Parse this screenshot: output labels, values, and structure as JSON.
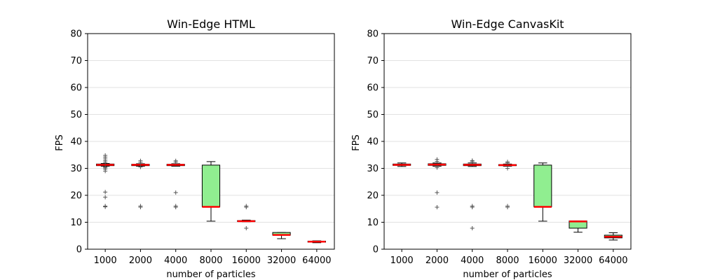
{
  "colors": {
    "box_fill": "#90ee90",
    "median": "#ff0000",
    "grid": "#d9d9d9",
    "outlier": "#555555"
  },
  "chart_data": [
    {
      "type": "box",
      "title": "Win-Edge HTML",
      "xlabel": "number of particles",
      "ylabel": "FPS",
      "ylim": [
        0,
        80
      ],
      "yticks": [
        0,
        10,
        20,
        30,
        40,
        50,
        60,
        70,
        80
      ],
      "grid": "horizontal",
      "categories": [
        "1000",
        "2000",
        "4000",
        "8000",
        "16000",
        "32000",
        "64000"
      ],
      "boxes": [
        {
          "q1": 31.0,
          "median": 31.3,
          "q3": 31.6,
          "whisker_low": 30.8,
          "whisker_high": 31.8,
          "outliers": [
            15.7,
            16.0,
            19.3,
            21.2,
            29.0,
            29.7,
            30.2,
            30.5,
            32.2,
            32.8,
            33.5,
            34.2,
            34.8
          ]
        },
        {
          "q1": 31.0,
          "median": 31.3,
          "q3": 31.5,
          "whisker_low": 30.8,
          "whisker_high": 31.7,
          "outliers": [
            15.6,
            16.0,
            30.5,
            32.2,
            32.8
          ]
        },
        {
          "q1": 31.0,
          "median": 31.3,
          "q3": 31.5,
          "whisker_low": 30.8,
          "whisker_high": 31.7,
          "outliers": [
            15.6,
            16.0,
            21.0,
            32.3,
            32.8
          ]
        },
        {
          "q1": 15.7,
          "median": 15.7,
          "q3": 31.2,
          "whisker_low": 10.4,
          "whisker_high": 32.5,
          "outliers": []
        },
        {
          "q1": 10.3,
          "median": 10.4,
          "q3": 10.6,
          "whisker_low": 10.2,
          "whisker_high": 10.8,
          "outliers": [
            7.8,
            15.6,
            16.0
          ]
        },
        {
          "q1": 5.2,
          "median": 5.3,
          "q3": 6.2,
          "whisker_low": 3.9,
          "whisker_high": 6.2,
          "outliers": []
        },
        {
          "q1": 2.6,
          "median": 2.8,
          "q3": 3.0,
          "whisker_low": 2.4,
          "whisker_high": 3.1,
          "outliers": []
        }
      ]
    },
    {
      "type": "box",
      "title": "Win-Edge CanvasKit",
      "xlabel": "number of particles",
      "ylabel": "FPS",
      "ylim": [
        0,
        80
      ],
      "yticks": [
        0,
        10,
        20,
        30,
        40,
        50,
        60,
        70,
        80
      ],
      "grid": "horizontal",
      "categories": [
        "1000",
        "2000",
        "4000",
        "8000",
        "16000",
        "32000",
        "64000"
      ],
      "boxes": [
        {
          "q1": 31.1,
          "median": 31.3,
          "q3": 31.6,
          "whisker_low": 30.7,
          "whisker_high": 32.0,
          "outliers": []
        },
        {
          "q1": 31.1,
          "median": 31.4,
          "q3": 31.7,
          "whisker_low": 30.8,
          "whisker_high": 32.0,
          "outliers": [
            15.6,
            21.0,
            30.3,
            32.6,
            33.3
          ]
        },
        {
          "q1": 31.0,
          "median": 31.3,
          "q3": 31.6,
          "whisker_low": 30.7,
          "whisker_high": 32.0,
          "outliers": [
            7.8,
            15.6,
            16.0,
            32.5,
            32.9
          ]
        },
        {
          "q1": 31.0,
          "median": 31.2,
          "q3": 31.4,
          "whisker_low": 30.8,
          "whisker_high": 31.6,
          "outliers": [
            15.6,
            16.0,
            30.0,
            32.0,
            32.4
          ]
        },
        {
          "q1": 15.7,
          "median": 15.7,
          "q3": 31.2,
          "whisker_low": 10.4,
          "whisker_high": 32.0,
          "outliers": []
        },
        {
          "q1": 7.8,
          "median": 10.3,
          "q3": 10.5,
          "whisker_low": 6.3,
          "whisker_high": 10.5,
          "outliers": []
        },
        {
          "q1": 4.2,
          "median": 4.6,
          "q3": 5.2,
          "whisker_low": 3.4,
          "whisker_high": 6.1,
          "outliers": []
        }
      ]
    }
  ]
}
